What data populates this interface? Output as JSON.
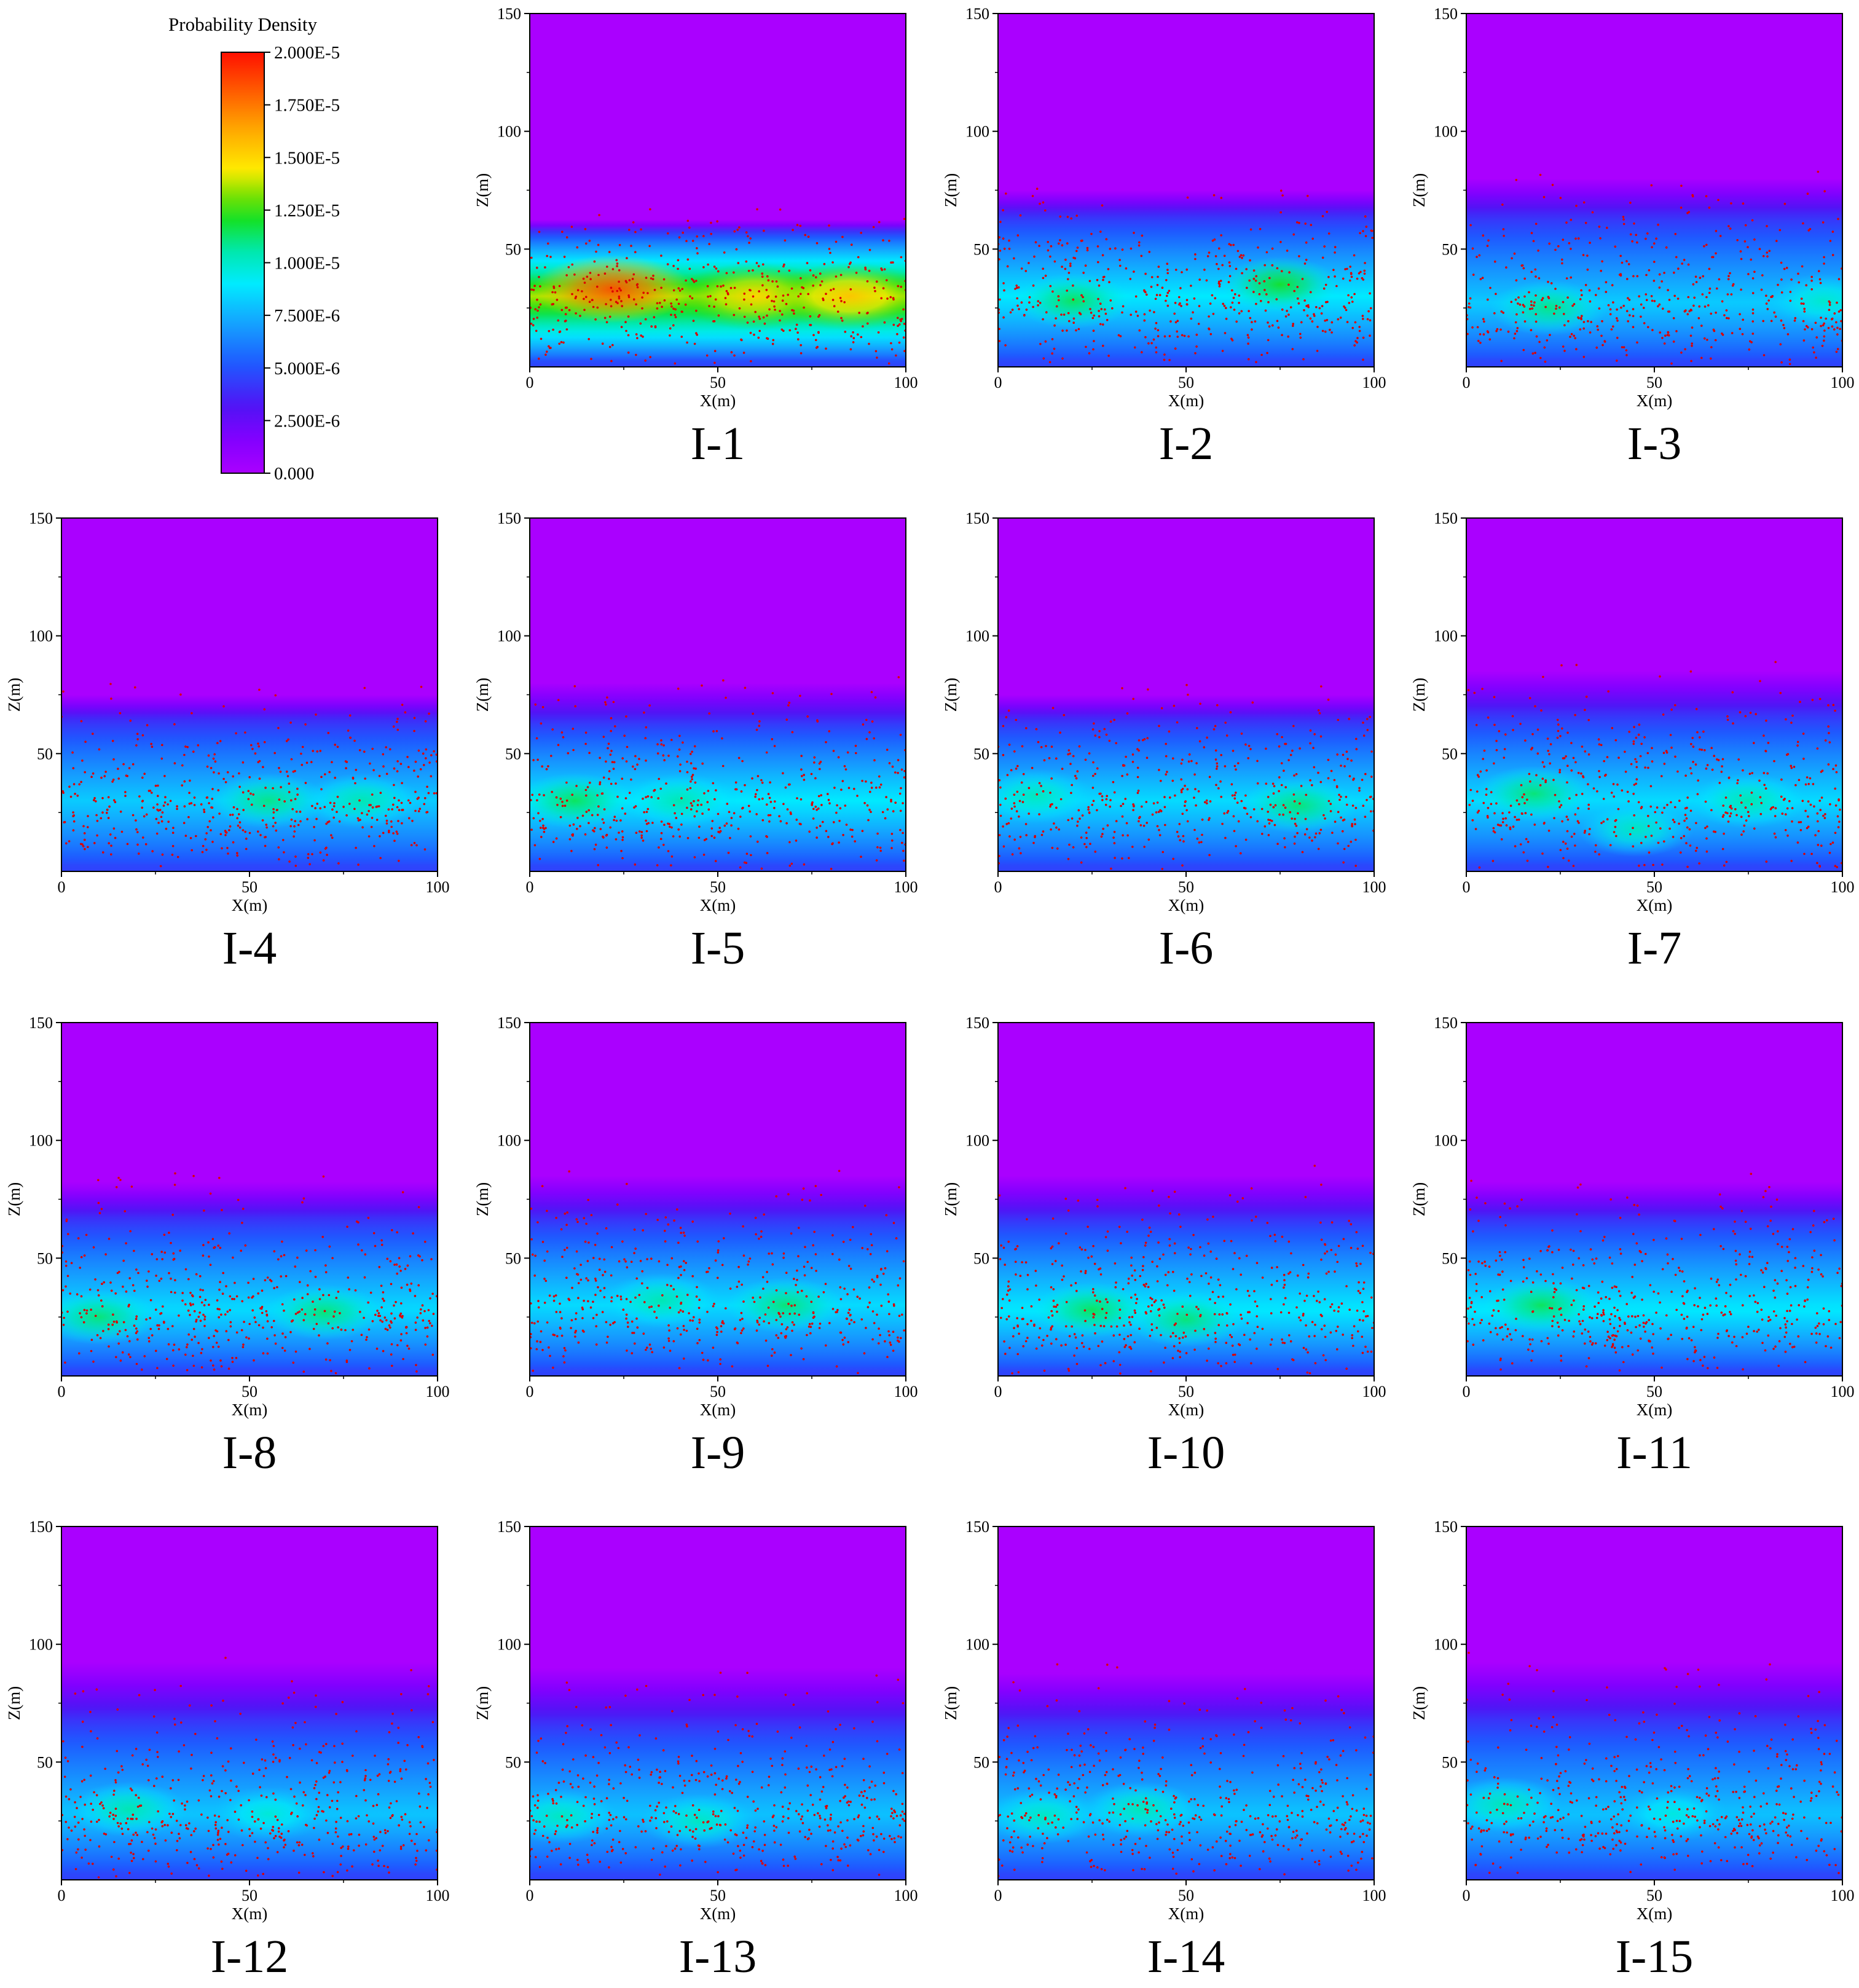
{
  "figure": {
    "x_label": "X(m)",
    "y_label": "Z(m)",
    "x_ticks": [
      "0",
      "50",
      "100"
    ],
    "y_ticks": [
      "50",
      "100",
      "150"
    ]
  },
  "colorbar": {
    "title": "Probability Density",
    "tick_labels": [
      "2.000E-5",
      "1.750E-5",
      "1.500E-5",
      "1.250E-5",
      "1.000E-5",
      "7.500E-6",
      "5.000E-6",
      "2.500E-6",
      "0.000"
    ],
    "tick_values": [
      2e-05,
      1.75e-05,
      1.5e-05,
      1.25e-05,
      1e-05,
      7.5e-06,
      5e-06,
      2.5e-06,
      0
    ],
    "range": [
      0,
      2e-05
    ],
    "colors": [
      "#aa00ff",
      "#7a00ff",
      "#4a10f0",
      "#2060ff",
      "#1aa0ff",
      "#00e5ff",
      "#00e67a",
      "#22dd00",
      "#ffee00",
      "#ffb000",
      "#ff6600",
      "#ff1a00"
    ]
  },
  "chart_data": [
    {
      "type": "heatmap",
      "panel_label": "I-1",
      "xlabel": "X(m)",
      "ylabel": "Z(m)",
      "xlim": [
        0,
        100
      ],
      "ylim": [
        0,
        150
      ],
      "band_center_z": 30,
      "band_top_z": 58,
      "band_bottom_z": 2,
      "background_top_z": 62,
      "peak_density": 1.75e-05,
      "hotspots": [
        {
          "x": 22,
          "z": 33,
          "density": 1.85e-05
        },
        {
          "x": 60,
          "z": 30,
          "density": 1.5e-05
        },
        {
          "x": 85,
          "z": 30,
          "density": 1.55e-05
        }
      ],
      "point_color": "#dd0000"
    },
    {
      "type": "heatmap",
      "panel_label": "I-2",
      "xlabel": "X(m)",
      "ylabel": "Z(m)",
      "xlim": [
        0,
        100
      ],
      "ylim": [
        0,
        150
      ],
      "band_center_z": 30,
      "band_top_z": 65,
      "band_bottom_z": 2,
      "background_top_z": 75,
      "peak_density": 1.15e-05,
      "hotspots": [
        {
          "x": 20,
          "z": 28,
          "density": 1.15e-05
        },
        {
          "x": 75,
          "z": 35,
          "density": 1.2e-05
        }
      ],
      "point_color": "#dd0000"
    },
    {
      "type": "heatmap",
      "panel_label": "I-3",
      "xlabel": "X(m)",
      "ylabel": "Z(m)",
      "xlim": [
        0,
        100
      ],
      "ylim": [
        0,
        150
      ],
      "band_center_z": 27,
      "band_top_z": 65,
      "band_bottom_z": 2,
      "background_top_z": 80,
      "peak_density": 1.05e-05,
      "hotspots": [
        {
          "x": 22,
          "z": 25,
          "density": 1.1e-05
        },
        {
          "x": 95,
          "z": 28,
          "density": 1e-05
        }
      ],
      "point_color": "#dd0000"
    },
    {
      "type": "heatmap",
      "panel_label": "I-4",
      "xlabel": "X(m)",
      "ylabel": "Z(m)",
      "xlim": [
        0,
        100
      ],
      "ylim": [
        0,
        150
      ],
      "band_center_z": 30,
      "band_top_z": 65,
      "band_bottom_z": 2,
      "background_top_z": 75,
      "peak_density": 1.05e-05,
      "hotspots": [
        {
          "x": 55,
          "z": 30,
          "density": 1.1e-05
        },
        {
          "x": 80,
          "z": 30,
          "density": 1.05e-05
        }
      ],
      "point_color": "#dd0000"
    },
    {
      "type": "heatmap",
      "panel_label": "I-5",
      "xlabel": "X(m)",
      "ylabel": "Z(m)",
      "xlim": [
        0,
        100
      ],
      "ylim": [
        0,
        150
      ],
      "band_center_z": 30,
      "band_top_z": 65,
      "band_bottom_z": 2,
      "background_top_z": 80,
      "peak_density": 1.15e-05,
      "hotspots": [
        {
          "x": 12,
          "z": 30,
          "density": 1.15e-05
        },
        {
          "x": 40,
          "z": 30,
          "density": 1.05e-05
        }
      ],
      "point_color": "#dd0000"
    },
    {
      "type": "heatmap",
      "panel_label": "I-6",
      "xlabel": "X(m)",
      "ylabel": "Z(m)",
      "xlim": [
        0,
        100
      ],
      "ylim": [
        0,
        150
      ],
      "band_center_z": 30,
      "band_top_z": 65,
      "band_bottom_z": 2,
      "background_top_z": 75,
      "peak_density": 1.1e-05,
      "hotspots": [
        {
          "x": 80,
          "z": 28,
          "density": 1.12e-05
        },
        {
          "x": 10,
          "z": 32,
          "density": 1.03e-05
        }
      ],
      "point_color": "#dd0000"
    },
    {
      "type": "heatmap",
      "panel_label": "I-7",
      "xlabel": "X(m)",
      "ylabel": "Z(m)",
      "xlim": [
        0,
        100
      ],
      "ylim": [
        0,
        150
      ],
      "band_center_z": 30,
      "band_top_z": 68,
      "band_bottom_z": 2,
      "background_top_z": 85,
      "peak_density": 1.1e-05,
      "hotspots": [
        {
          "x": 18,
          "z": 33,
          "density": 1.12e-05
        },
        {
          "x": 75,
          "z": 30,
          "density": 1.05e-05
        },
        {
          "x": 45,
          "z": 18,
          "density": 1.02e-05
        }
      ],
      "point_color": "#dd0000"
    },
    {
      "type": "heatmap",
      "panel_label": "I-8",
      "xlabel": "X(m)",
      "ylabel": "Z(m)",
      "xlim": [
        0,
        100
      ],
      "ylim": [
        0,
        150
      ],
      "band_center_z": 28,
      "band_top_z": 68,
      "band_bottom_z": 2,
      "background_top_z": 82,
      "peak_density": 1.1e-05,
      "hotspots": [
        {
          "x": 10,
          "z": 25,
          "density": 1.12e-05
        },
        {
          "x": 70,
          "z": 27,
          "density": 1.12e-05
        }
      ],
      "point_color": "#dd0000"
    },
    {
      "type": "heatmap",
      "panel_label": "I-9",
      "xlabel": "X(m)",
      "ylabel": "Z(m)",
      "xlim": [
        0,
        100
      ],
      "ylim": [
        0,
        150
      ],
      "band_center_z": 30,
      "band_top_z": 68,
      "band_bottom_z": 2,
      "background_top_z": 85,
      "peak_density": 1.1e-05,
      "hotspots": [
        {
          "x": 35,
          "z": 32,
          "density": 1.05e-05
        },
        {
          "x": 68,
          "z": 30,
          "density": 1.12e-05
        }
      ],
      "point_color": "#dd0000"
    },
    {
      "type": "heatmap",
      "panel_label": "I-10",
      "xlabel": "X(m)",
      "ylabel": "Z(m)",
      "xlim": [
        0,
        100
      ],
      "ylim": [
        0,
        150
      ],
      "band_center_z": 28,
      "band_top_z": 68,
      "band_bottom_z": 2,
      "background_top_z": 85,
      "peak_density": 1.15e-05,
      "hotspots": [
        {
          "x": 25,
          "z": 28,
          "density": 1.15e-05
        },
        {
          "x": 50,
          "z": 24,
          "density": 1.12e-05
        }
      ],
      "point_color": "#dd0000"
    },
    {
      "type": "heatmap",
      "panel_label": "I-11",
      "xlabel": "X(m)",
      "ylabel": "Z(m)",
      "xlim": [
        0,
        100
      ],
      "ylim": [
        0,
        150
      ],
      "band_center_z": 28,
      "band_top_z": 68,
      "band_bottom_z": 2,
      "background_top_z": 82,
      "peak_density": 1.15e-05,
      "hotspots": [
        {
          "x": 20,
          "z": 30,
          "density": 1.15e-05
        }
      ],
      "point_color": "#dd0000"
    },
    {
      "type": "heatmap",
      "panel_label": "I-12",
      "xlabel": "X(m)",
      "ylabel": "Z(m)",
      "xlim": [
        0,
        100
      ],
      "ylim": [
        0,
        150
      ],
      "band_center_z": 28,
      "band_top_z": 70,
      "band_bottom_z": 2,
      "background_top_z": 92,
      "peak_density": 1.03e-05,
      "hotspots": [
        {
          "x": 18,
          "z": 30,
          "density": 1.05e-05
        },
        {
          "x": 55,
          "z": 28,
          "density": 9.8e-06
        }
      ],
      "point_color": "#dd0000"
    },
    {
      "type": "heatmap",
      "panel_label": "I-13",
      "xlabel": "X(m)",
      "ylabel": "Z(m)",
      "xlim": [
        0,
        100
      ],
      "ylim": [
        0,
        150
      ],
      "band_center_z": 28,
      "band_top_z": 68,
      "band_bottom_z": 2,
      "background_top_z": 90,
      "peak_density": 1.02e-05,
      "hotspots": [
        {
          "x": 8,
          "z": 27,
          "density": 1.02e-05
        },
        {
          "x": 45,
          "z": 25,
          "density": 1.02e-05
        }
      ],
      "point_color": "#dd0000"
    },
    {
      "type": "heatmap",
      "panel_label": "I-14",
      "xlabel": "X(m)",
      "ylabel": "Z(m)",
      "xlim": [
        0,
        100
      ],
      "ylim": [
        0,
        150
      ],
      "band_center_z": 28,
      "band_top_z": 68,
      "band_bottom_z": 2,
      "background_top_z": 88,
      "peak_density": 1.03e-05,
      "hotspots": [
        {
          "x": 12,
          "z": 27,
          "density": 1.02e-05
        },
        {
          "x": 38,
          "z": 30,
          "density": 1.04e-05
        }
      ],
      "point_color": "#dd0000"
    },
    {
      "type": "heatmap",
      "panel_label": "I-15",
      "xlabel": "X(m)",
      "ylabel": "Z(m)",
      "xlim": [
        0,
        100
      ],
      "ylim": [
        0,
        150
      ],
      "band_center_z": 28,
      "band_top_z": 70,
      "band_bottom_z": 2,
      "background_top_z": 92,
      "peak_density": 1.02e-05,
      "hotspots": [
        {
          "x": 10,
          "z": 32,
          "density": 1.04e-05
        },
        {
          "x": 55,
          "z": 28,
          "density": 9.6e-06
        }
      ],
      "point_color": "#dd0000"
    }
  ]
}
